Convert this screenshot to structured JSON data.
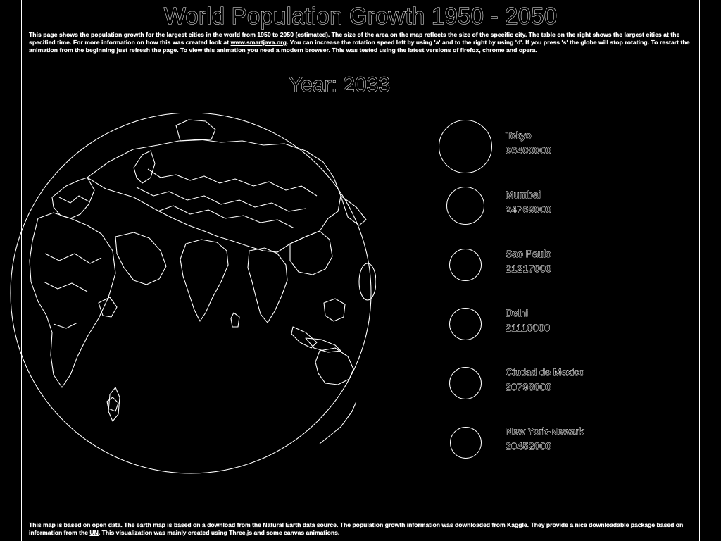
{
  "header": {
    "title": "World Population Growth 1950 - 2050",
    "intro_part1": "This page shows the population growth for the largest cities in the world from 1950 to 2050 (estimated). The size of the area on the map reflects the size of the specific city. The table on the right shows the largest cities at the specified time. For more information on how this was created look at ",
    "intro_link": "www.smartjava.org",
    "intro_part2": ". You can increase the rotation speed left by using 'a' and to the right by using 'd'. If you press 's' the globe will stop rotating. To restart the animation from the beginning just refresh the page. To view this animation you need a modern browser. This was tested using the latest versions of firefox, chrome and opera."
  },
  "year": {
    "label": "Year:",
    "value": "2033"
  },
  "cities": [
    {
      "name": "Tokyo",
      "population": "36400000",
      "marker_diameter": 76
    },
    {
      "name": "Mumbai",
      "population": "24769000",
      "marker_diameter": 54
    },
    {
      "name": "Sao Paulo",
      "population": "21217000",
      "marker_diameter": 46
    },
    {
      "name": "Delhi",
      "population": "21110000",
      "marker_diameter": 46
    },
    {
      "name": "Ciudad de Mexico",
      "population": "20798000",
      "marker_diameter": 46
    },
    {
      "name": "New York-Newark",
      "population": "20452000",
      "marker_diameter": 45
    }
  ],
  "footer": {
    "part1": "This map is based on open data. The earth map is based on a download from the ",
    "link1": "Natural Earth",
    "part2": " data source. The population growth information was downloaded from ",
    "link2": "Kaggle",
    "part3": ". They provide a nice downloadable package based on information from the ",
    "link3": "UN",
    "part4": ". This visualization was mainly created using Three.js and some canvas animations."
  }
}
